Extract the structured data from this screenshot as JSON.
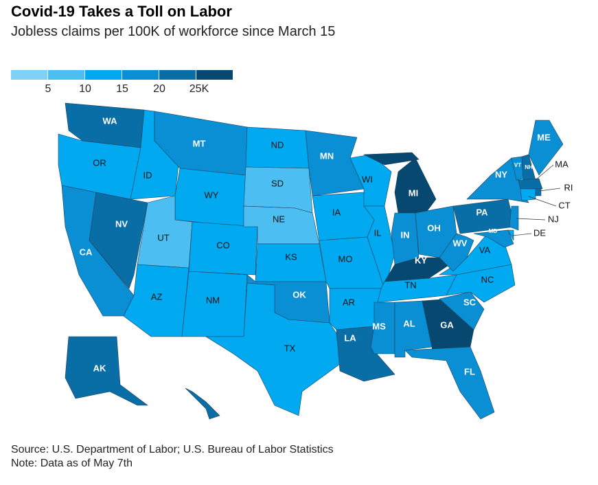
{
  "chart_data": {
    "type": "choropleth",
    "title": "Covid-19 Takes a Toll on Labor",
    "subtitle": "Jobless claims per 100K of workforce since March 15",
    "legend": {
      "colors": [
        "#7fd0f7",
        "#4dbef2",
        "#00a9f0",
        "#0a8fd4",
        "#0a6ea6",
        "#06486f"
      ],
      "ticks": [
        5,
        10,
        15,
        20,
        {
          "value": 25,
          "label": "25K"
        }
      ]
    },
    "states": [
      {
        "label": "WA",
        "value": 22
      },
      {
        "label": "OR",
        "value": 12
      },
      {
        "label": "CA",
        "value": 17
      },
      {
        "label": "NV",
        "value": 22
      },
      {
        "label": "ID",
        "value": 12
      },
      {
        "label": "MT",
        "value": 17
      },
      {
        "label": "WY",
        "value": 12
      },
      {
        "label": "UT",
        "value": 8
      },
      {
        "label": "AZ",
        "value": 12
      },
      {
        "label": "CO",
        "value": 13
      },
      {
        "label": "NM",
        "value": 12
      },
      {
        "label": "ND",
        "value": 12
      },
      {
        "label": "SD",
        "value": 8
      },
      {
        "label": "NE",
        "value": 8
      },
      {
        "label": "KS",
        "value": 12
      },
      {
        "label": "OK",
        "value": 18
      },
      {
        "label": "TX",
        "value": 12
      },
      {
        "label": "MN",
        "value": 18
      },
      {
        "label": "IA",
        "value": 13
      },
      {
        "label": "MO",
        "value": 12
      },
      {
        "label": "AR",
        "value": 13
      },
      {
        "label": "LA",
        "value": 22
      },
      {
        "label": "WI",
        "value": 13
      },
      {
        "label": "IL",
        "value": 13
      },
      {
        "label": "MI",
        "value": 27
      },
      {
        "label": "IN",
        "value": 17
      },
      {
        "label": "OH",
        "value": 17
      },
      {
        "label": "KY",
        "value": 27
      },
      {
        "label": "TN",
        "value": 12
      },
      {
        "label": "MS",
        "value": 17
      },
      {
        "label": "AL",
        "value": 17
      },
      {
        "label": "GA",
        "value": 27
      },
      {
        "label": "FL",
        "value": 17
      },
      {
        "label": "SC",
        "value": 17
      },
      {
        "label": "NC",
        "value": 12
      },
      {
        "label": "VA",
        "value": 12
      },
      {
        "label": "WV",
        "value": 17
      },
      {
        "label": "PA",
        "value": 22
      },
      {
        "label": "NY",
        "value": 18
      },
      {
        "label": "VT",
        "value": 18
      },
      {
        "label": "NH",
        "value": 22
      },
      {
        "label": "ME",
        "value": 17
      },
      {
        "label": "MA",
        "value": 22
      },
      {
        "label": "RI",
        "value": 22
      },
      {
        "label": "CT",
        "value": 13
      },
      {
        "label": "NJ",
        "value": 17
      },
      {
        "label": "DE",
        "value": 13
      },
      {
        "label": "MD",
        "value": 17
      },
      {
        "label": "AK",
        "value": 22
      },
      {
        "label": "HI",
        "value": 22
      }
    ],
    "source": "Source: U.S. Department of Labor; U.S. Bureau of Labor Statistics",
    "note": "Note: Data as of May 7th"
  }
}
